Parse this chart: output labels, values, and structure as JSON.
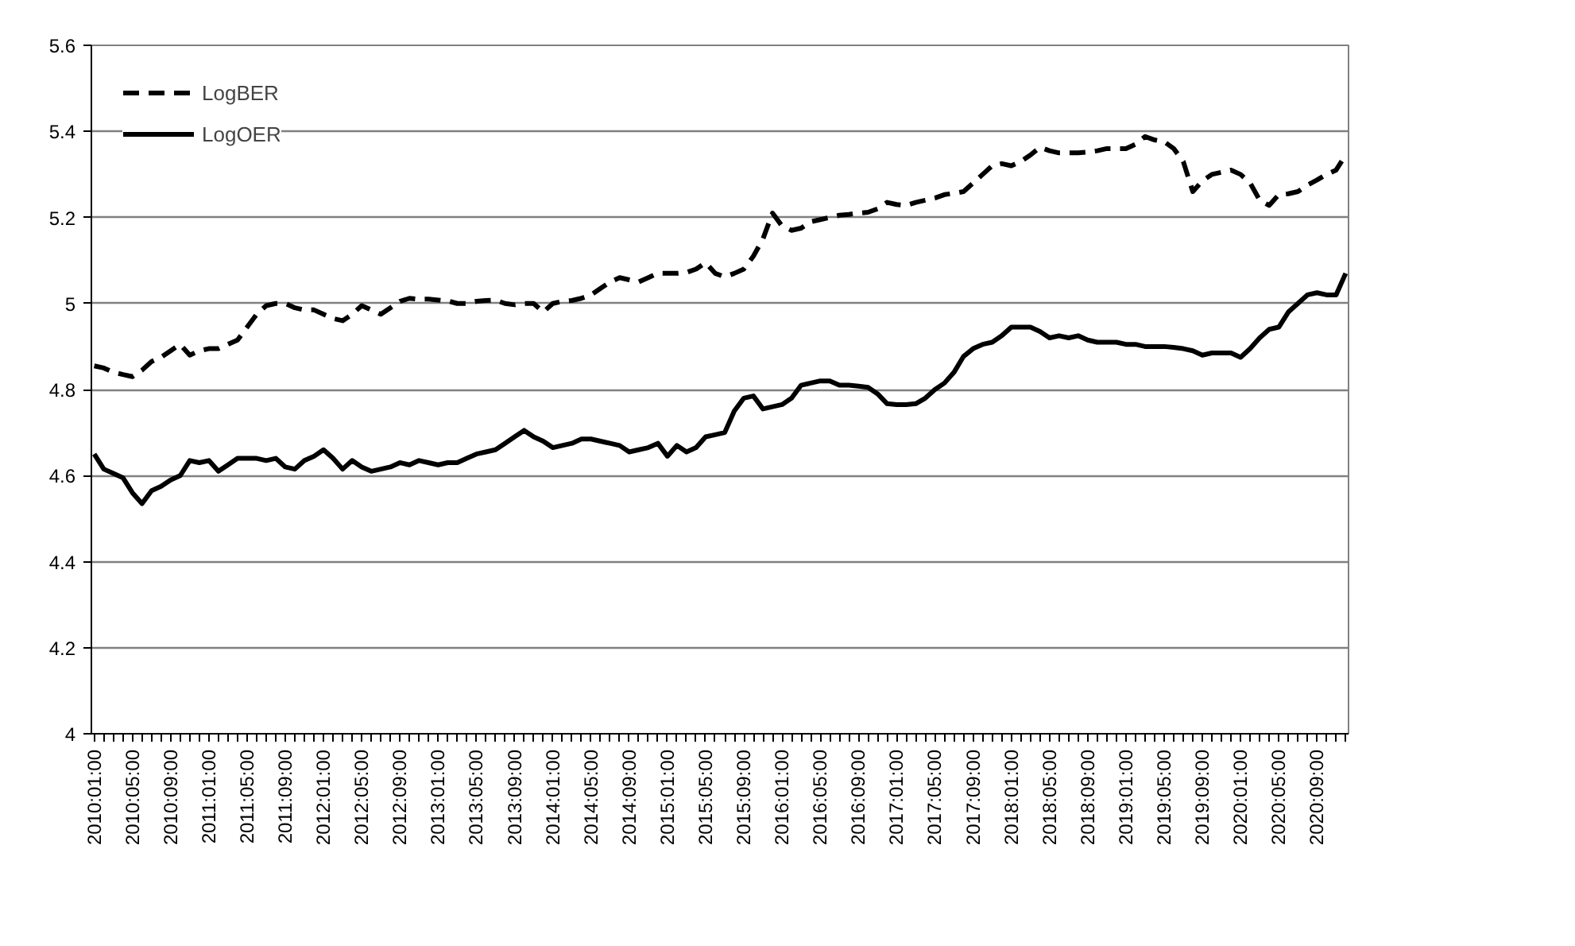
{
  "chart_data": {
    "type": "line",
    "categories": [
      "2010:01:00",
      null,
      null,
      null,
      "2010:05:00",
      null,
      null,
      null,
      "2010:09:00",
      null,
      null,
      null,
      "2011:01:00",
      null,
      null,
      null,
      "2011:05:00",
      null,
      null,
      null,
      "2011:09:00",
      null,
      null,
      null,
      "2012:01:00",
      null,
      null,
      null,
      "2012:05:00",
      null,
      null,
      null,
      "2012:09:00",
      null,
      null,
      null,
      "2013:01:00",
      null,
      null,
      null,
      "2013:05:00",
      null,
      null,
      null,
      "2013:09:00",
      null,
      null,
      null,
      "2014:01:00",
      null,
      null,
      null,
      "2014:05:00",
      null,
      null,
      null,
      "2014:09:00",
      null,
      null,
      null,
      "2015:01:00",
      null,
      null,
      null,
      "2015:05:00",
      null,
      null,
      null,
      "2015:09:00",
      null,
      null,
      null,
      "2016:01:00",
      null,
      null,
      null,
      "2016:05:00",
      null,
      null,
      null,
      "2016:09:00",
      null,
      null,
      null,
      "2017:01:00",
      null,
      null,
      null,
      "2017:05:00",
      null,
      null,
      null,
      "2017:09:00",
      null,
      null,
      null,
      "2018:01:00",
      null,
      null,
      null,
      "2018:05:00",
      null,
      null,
      null,
      "2018:09:00",
      null,
      null,
      null,
      "2019:01:00",
      null,
      null,
      null,
      "2019:05:00",
      null,
      null,
      null,
      "2019:09:00",
      null,
      null,
      null,
      "2020:01:00",
      null,
      null,
      null,
      "2020:05:00",
      null,
      null,
      null,
      "2020:09:00",
      null,
      null,
      null
    ],
    "series": [
      {
        "name": "LogBER",
        "color": "#000000",
        "line_style": "dashed",
        "values": [
          4.855,
          4.85,
          4.84,
          4.835,
          4.83,
          4.845,
          4.865,
          4.875,
          4.89,
          4.905,
          4.88,
          4.89,
          4.895,
          4.895,
          4.905,
          4.915,
          4.945,
          4.975,
          4.995,
          5.0,
          5.0,
          4.99,
          4.985,
          4.985,
          4.975,
          4.965,
          4.96,
          4.975,
          4.995,
          4.985,
          4.975,
          4.99,
          5.005,
          5.012,
          5.01,
          5.01,
          5.008,
          5.006,
          5.0,
          5.0,
          5.005,
          5.007,
          5.008,
          5.0,
          4.997,
          5.0,
          5.0,
          4.98,
          5.0,
          5.005,
          5.007,
          5.012,
          5.02,
          5.035,
          5.05,
          5.06,
          5.055,
          5.05,
          5.06,
          5.07,
          5.07,
          5.07,
          5.072,
          5.08,
          5.095,
          5.07,
          5.062,
          5.07,
          5.08,
          5.11,
          5.15,
          5.21,
          5.18,
          5.17,
          5.175,
          5.19,
          5.195,
          5.2,
          5.205,
          5.207,
          5.21,
          5.212,
          5.22,
          5.235,
          5.23,
          5.228,
          5.235,
          5.24,
          5.245,
          5.253,
          5.256,
          5.26,
          5.28,
          5.3,
          5.32,
          5.325,
          5.32,
          5.33,
          5.345,
          5.363,
          5.355,
          5.35,
          5.35,
          5.35,
          5.352,
          5.355,
          5.36,
          5.36,
          5.36,
          5.37,
          5.388,
          5.38,
          5.376,
          5.36,
          5.33,
          5.26,
          5.285,
          5.3,
          5.305,
          5.31,
          5.3,
          5.28,
          5.24,
          5.228,
          5.253,
          5.255,
          5.26,
          5.275,
          5.287,
          5.3,
          5.31,
          5.345
        ]
      },
      {
        "name": "LogOER",
        "color": "#000000",
        "line_style": "solid",
        "values": [
          4.65,
          4.615,
          4.605,
          4.595,
          4.56,
          4.535,
          4.565,
          4.575,
          4.59,
          4.6,
          4.635,
          4.63,
          4.635,
          4.61,
          4.625,
          4.64,
          4.64,
          4.64,
          4.635,
          4.64,
          4.62,
          4.615,
          4.635,
          4.645,
          4.66,
          4.64,
          4.615,
          4.635,
          4.62,
          4.61,
          4.615,
          4.62,
          4.63,
          4.625,
          4.635,
          4.63,
          4.625,
          4.63,
          4.63,
          4.64,
          4.65,
          4.655,
          4.66,
          4.675,
          4.69,
          4.705,
          4.69,
          4.68,
          4.665,
          4.67,
          4.675,
          4.685,
          4.685,
          4.68,
          4.675,
          4.67,
          4.655,
          4.66,
          4.665,
          4.675,
          4.645,
          4.67,
          4.655,
          4.665,
          4.69,
          4.695,
          4.7,
          4.75,
          4.78,
          4.785,
          4.755,
          4.76,
          4.765,
          4.78,
          4.81,
          4.815,
          4.82,
          4.82,
          4.81,
          4.81,
          4.808,
          4.805,
          4.79,
          4.767,
          4.765,
          4.765,
          4.767,
          4.78,
          4.8,
          4.815,
          4.84,
          4.877,
          4.895,
          4.905,
          4.91,
          4.925,
          4.945,
          4.945,
          4.945,
          4.935,
          4.92,
          4.925,
          4.92,
          4.925,
          4.915,
          4.91,
          4.91,
          4.91,
          4.905,
          4.905,
          4.9,
          4.9,
          4.9,
          4.898,
          4.895,
          4.89,
          4.88,
          4.885,
          4.885,
          4.885,
          4.875,
          4.895,
          4.92,
          4.94,
          4.945,
          4.98,
          5.0,
          5.02,
          5.025,
          5.02,
          5.02,
          5.07
        ]
      }
    ],
    "ylim": [
      4,
      5.6
    ],
    "yticks": [
      4,
      4.2,
      4.4,
      4.6,
      4.8,
      5,
      5.2,
      5.4,
      5.6
    ],
    "grid": "y",
    "legend": "top left"
  }
}
